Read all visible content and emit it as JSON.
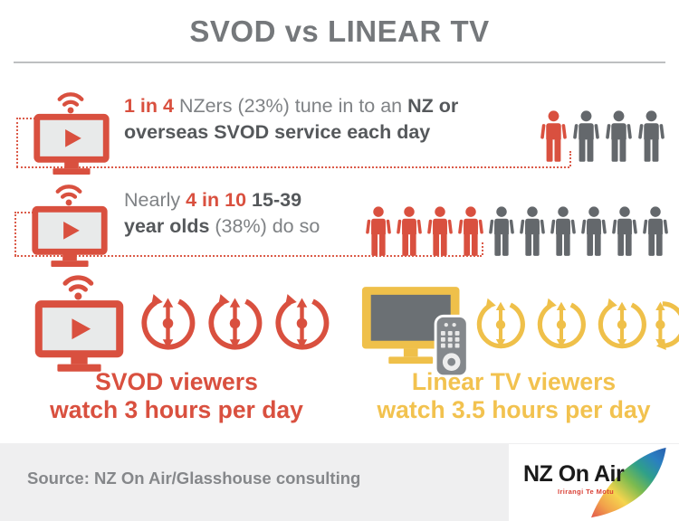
{
  "title": "SVOD vs LINEAR TV",
  "colors": {
    "red": "#D9503F",
    "person_gray": "#64686C",
    "yellow_icon": "#EFC04A",
    "yellow_text": "#F2C24F",
    "dark_text": "#55585B",
    "body_text": "#7F8285",
    "footer_bg": "#EFEFF0"
  },
  "rows": [
    {
      "parts": {
        "pre": "",
        "stat": "1 in 4",
        "mid": " NZers (23%) tune in to an ",
        "bold_tail": "NZ or",
        "line2_bold": "overseas SVOD service each day",
        "line2_rest": ""
      },
      "people": {
        "highlighted": 1,
        "total": 4,
        "highlight_color": "#D9503F",
        "base_color": "#64686C"
      }
    },
    {
      "parts": {
        "pre": "Nearly ",
        "stat": "4 in 10",
        "mid": " ",
        "bold_tail": "15-39",
        "line2_bold": "year olds ",
        "line2_rest": "(38%) do so"
      },
      "people": {
        "highlighted": 4,
        "total": 10,
        "highlight_color": "#D9503F",
        "base_color": "#64686C"
      }
    }
  ],
  "comparison": {
    "svod": {
      "line1": "SVOD viewers",
      "line2": "watch 3 hours per day",
      "hours_per_day": 3,
      "clocks_full": 3,
      "clocks_half": 0,
      "color": "#D9503F"
    },
    "linear": {
      "line1": "Linear TV viewers",
      "line2": "watch 3.5 hours per day",
      "hours_per_day": 3.5,
      "clocks_full": 3,
      "clocks_half": 1,
      "color": "#EFC04A"
    }
  },
  "footer": {
    "source": "Source: NZ On Air/Glasshouse consulting",
    "logo": {
      "title": "NZ On Air",
      "subtitle": "Irirangi Te Motu"
    }
  },
  "chart_data": {
    "type": "table",
    "title": "SVOD vs LINEAR TV",
    "rows": [
      {
        "group": "All NZers",
        "metric": "tune in to an NZ or overseas SVOD service each day",
        "ratio": "1 in 4",
        "percent": 23
      },
      {
        "group": "15-39 year olds",
        "metric": "tune in to an NZ or overseas SVOD service each day",
        "ratio": "4 in 10 (nearly)",
        "percent": 38
      },
      {
        "group": "SVOD viewers",
        "metric": "hours watched per day",
        "hours": 3
      },
      {
        "group": "Linear TV viewers",
        "metric": "hours watched per day",
        "hours": 3.5
      }
    ],
    "source": "NZ On Air/Glasshouse consulting"
  }
}
